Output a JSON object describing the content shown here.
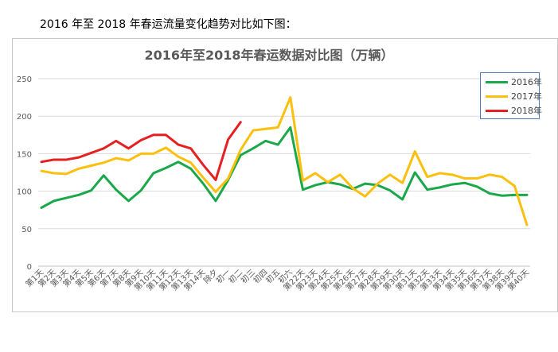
{
  "intro_text": "2016 年至 2018 年春运流量变化趋势对比如下图：",
  "colors": {
    "2016年": "#1aa84a",
    "2017年": "#fbbf0e",
    "2018年": "#e62020",
    "grid": "#d9d9d9",
    "axis_text": "#595959"
  },
  "chart_data": {
    "type": "line",
    "title": "2016年至2018年春运数据对比图（万辆）",
    "xlabel": "",
    "ylabel": "",
    "ylim": [
      0,
      250
    ],
    "yticks": [
      0,
      50,
      100,
      150,
      200,
      250
    ],
    "grid": true,
    "legend_position": "right",
    "categories": [
      "第1天",
      "第2天",
      "第3天",
      "第4天",
      "第5天",
      "第6天",
      "第7天",
      "第8天",
      "第9天",
      "第10天",
      "第11天",
      "第12天",
      "第13天",
      "第14天",
      "除夕",
      "初一",
      "初二",
      "初三",
      "初四",
      "初五",
      "初六",
      "第22天",
      "第23天",
      "第24天",
      "第25天",
      "第26天",
      "第27天",
      "第28天",
      "第29天",
      "第30天",
      "第31天",
      "第32天",
      "第33天",
      "第34天",
      "第35天",
      "第36天",
      "第37天",
      "第38天",
      "第39天",
      "第40天"
    ],
    "series": [
      {
        "name": "2016年",
        "values": [
          78,
          87,
          91,
          95,
          101,
          121,
          102,
          87,
          101,
          124,
          131,
          139,
          130,
          110,
          87,
          115,
          148,
          157,
          167,
          162,
          185,
          102,
          108,
          112,
          109,
          103,
          110,
          108,
          101,
          89,
          125,
          102,
          105,
          109,
          111,
          106,
          97,
          94,
          95,
          95
        ]
      },
      {
        "name": "2017年",
        "values": [
          127,
          124,
          123,
          130,
          134,
          138,
          144,
          141,
          150,
          150,
          158,
          146,
          138,
          118,
          99,
          117,
          155,
          181,
          183,
          185,
          225,
          114,
          124,
          112,
          122,
          104,
          93,
          110,
          122,
          111,
          153,
          119,
          124,
          122,
          117,
          117,
          122,
          119,
          107,
          55
        ]
      },
      {
        "name": "2018年",
        "values": [
          139,
          142,
          142,
          145,
          151,
          157,
          167,
          157,
          168,
          175,
          175,
          162,
          157,
          135,
          115,
          169,
          192,
          null,
          null,
          null,
          null,
          null,
          null,
          null,
          null,
          null,
          null,
          null,
          null,
          null,
          null,
          null,
          null,
          null,
          null,
          null,
          null,
          null,
          null,
          null
        ]
      }
    ]
  }
}
